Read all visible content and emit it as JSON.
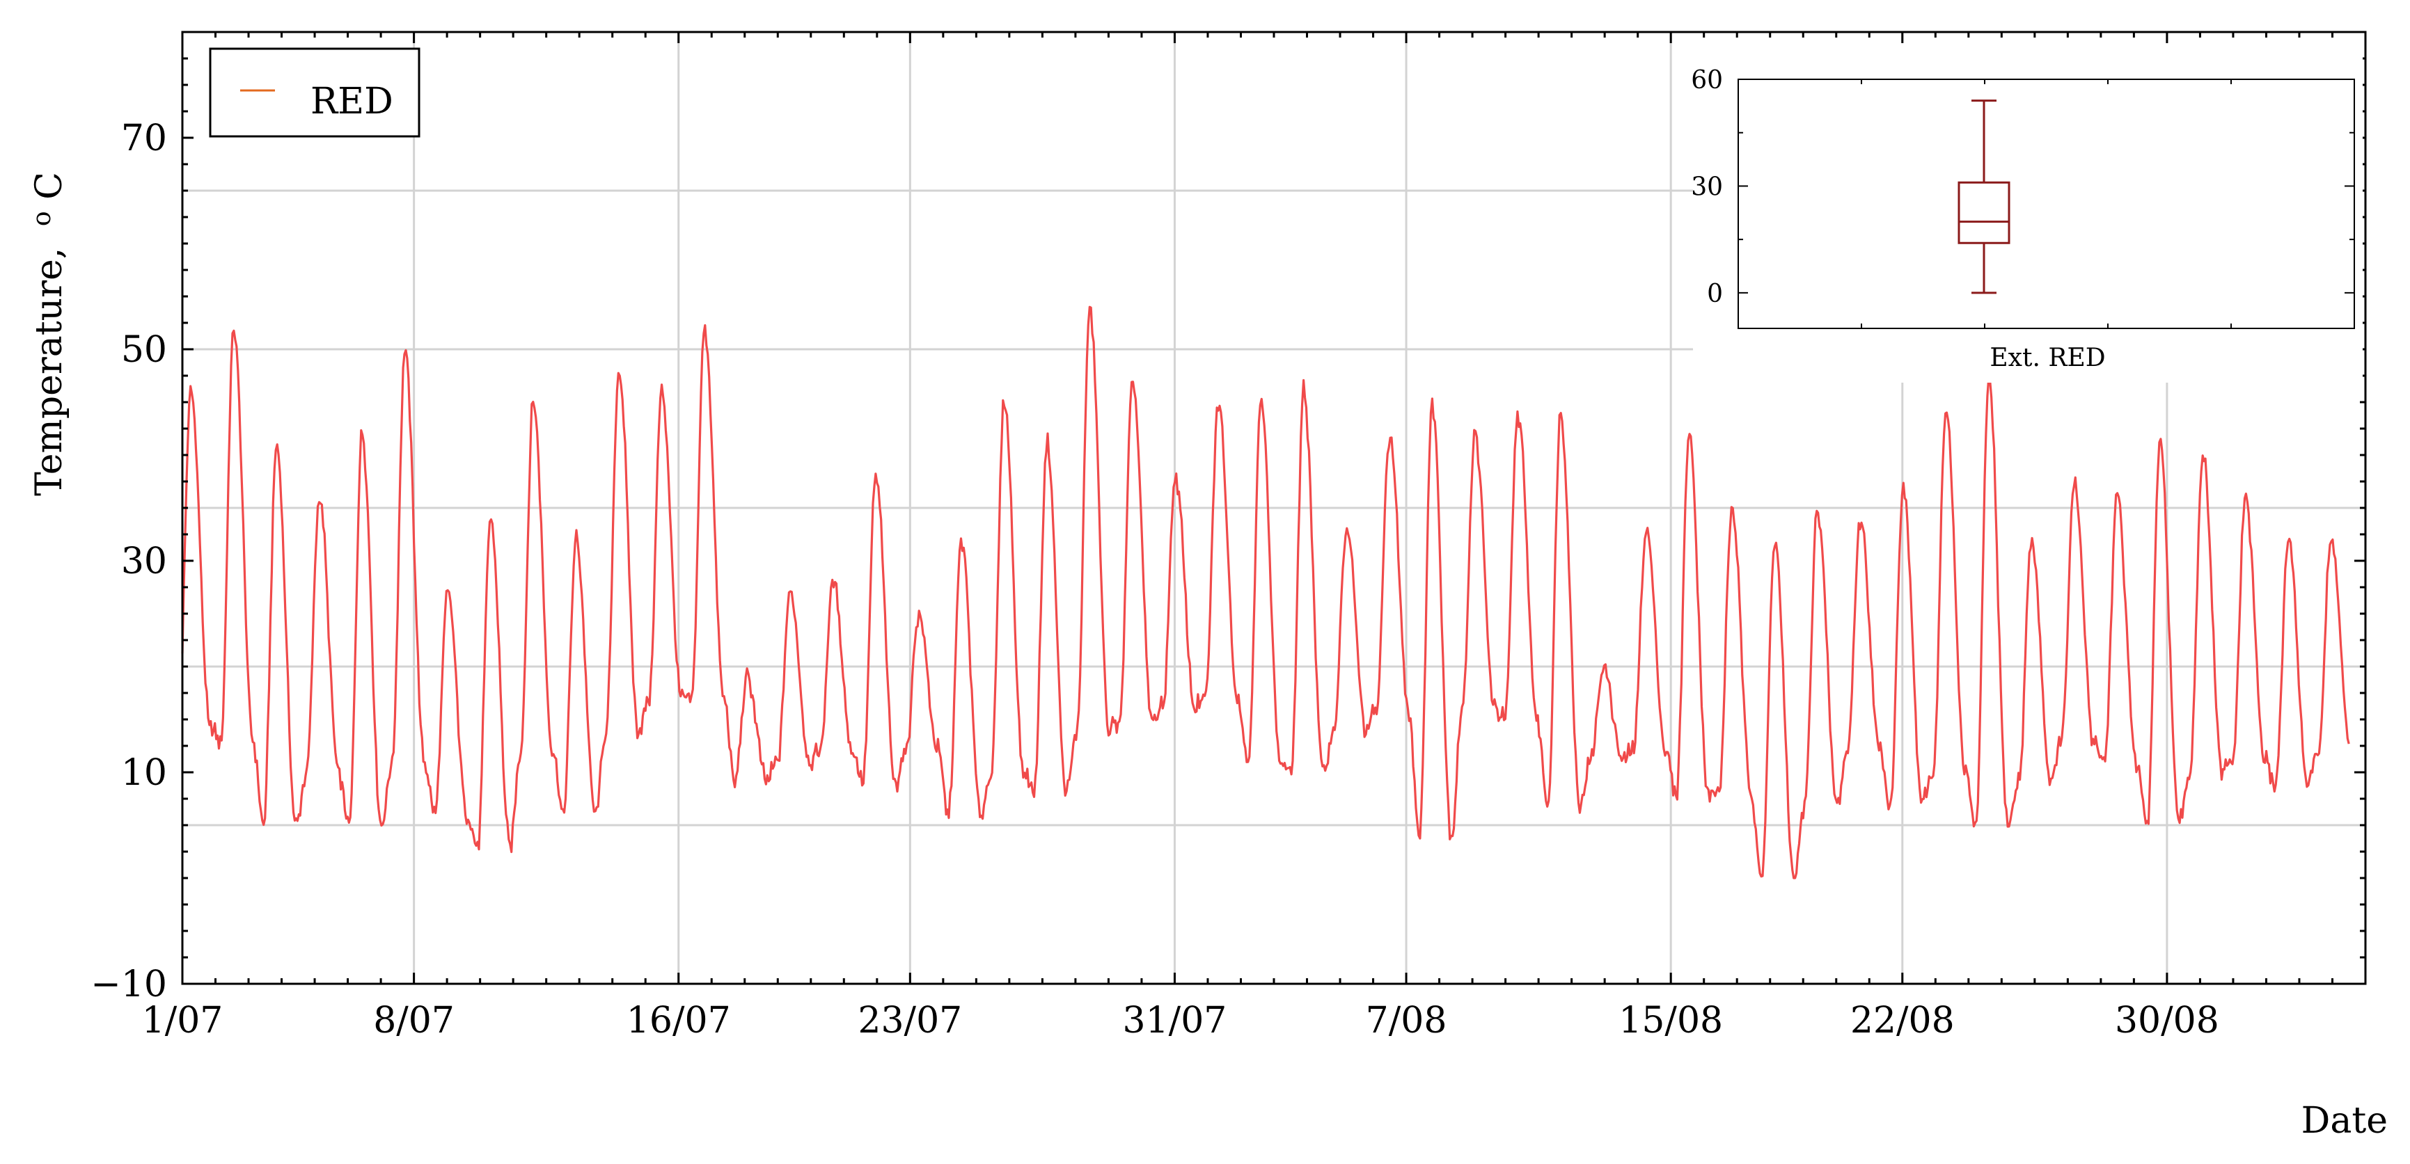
{
  "chart_data": [
    {
      "type": "line",
      "xlabel": "Date",
      "ylabel": "Temperature, °C",
      "ylabel_main": "Temperature,",
      "ylabel_unit": "C",
      "ylabel_degree": "o",
      "x_ticks": [
        "1/07",
        "8/07",
        "16/07",
        "23/07",
        "31/07",
        "7/08",
        "15/08",
        "22/08",
        "30/08"
      ],
      "x_tick_days": [
        0,
        7,
        15,
        22,
        30,
        37,
        45,
        52,
        60
      ],
      "xlim_days": [
        0,
        66
      ],
      "ylim": [
        -10,
        80
      ],
      "y_ticks": [
        -10,
        10,
        30,
        50,
        70
      ],
      "grid": true,
      "legend": {
        "position": "top-left",
        "entries": [
          "RED"
        ]
      },
      "series": [
        {
          "name": "RED",
          "color": "#f04a4a",
          "legend_color": "#e36a1f",
          "daily_max": [
            46,
            52,
            41,
            36,
            42,
            50,
            27,
            34,
            45,
            32,
            48,
            46,
            52,
            19,
            27,
            28,
            38,
            25,
            32,
            45,
            41,
            54,
            47,
            38,
            45,
            45,
            46,
            33,
            42,
            45,
            42,
            44,
            44,
            20,
            33,
            42,
            35,
            32,
            35,
            34,
            37,
            44,
            47,
            32,
            37,
            36,
            41,
            40,
            36,
            32,
            32
          ],
          "daily_min": [
            14,
            13,
            5,
            10,
            5,
            11,
            6,
            3,
            12,
            6,
            14,
            17,
            17,
            9,
            11,
            12,
            9,
            12,
            6,
            10,
            8,
            14,
            15,
            16,
            17,
            11,
            10,
            14,
            16,
            4,
            16,
            15,
            7,
            11,
            12,
            8,
            8,
            0,
            7,
            12,
            7,
            10,
            5,
            9,
            13,
            11,
            5,
            10,
            11,
            9,
            12
          ],
          "x_start_day": 0,
          "x_end_day": 65.5,
          "min_value": 0,
          "max_value": 54
        }
      ]
    },
    {
      "type": "box",
      "category": "Ext. RED",
      "ylim": [
        -10,
        60
      ],
      "y_ticks": [
        0,
        30,
        60
      ],
      "box": {
        "min": 0,
        "q1": 14,
        "median": 20,
        "q3": 31,
        "max": 54
      },
      "color": "#8b1a1a"
    }
  ]
}
